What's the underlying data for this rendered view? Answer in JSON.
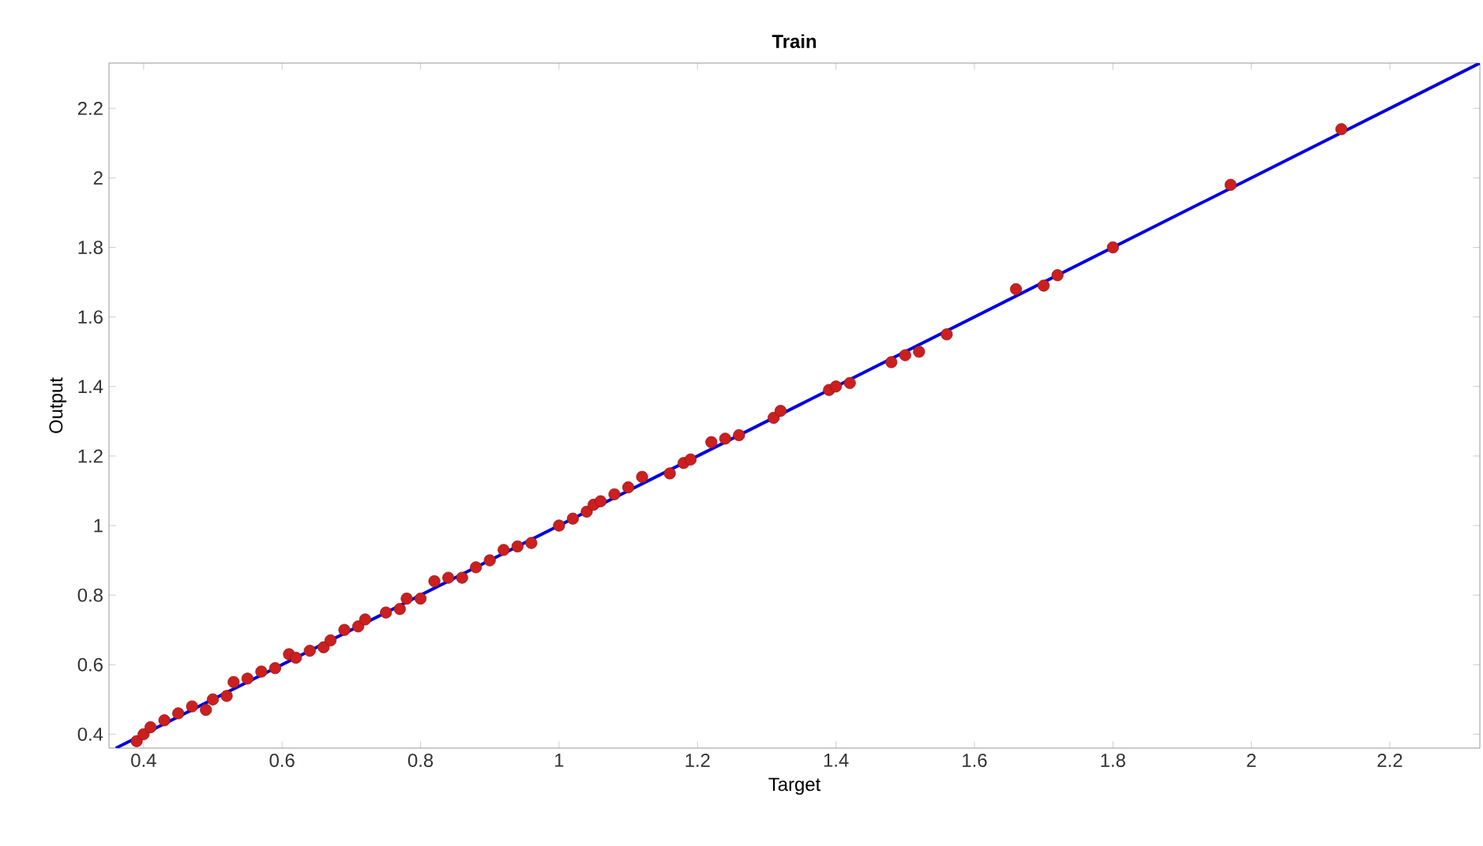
{
  "chart_data": {
    "type": "scatter",
    "title": "Train",
    "xlabel": "Target",
    "ylabel": "Output",
    "xlim": [
      0.35,
      2.33
    ],
    "ylim": [
      0.36,
      2.33
    ],
    "xticks": [
      0.4,
      0.6,
      0.8,
      1,
      1.2,
      1.4,
      1.6,
      1.8,
      2,
      2.2
    ],
    "yticks": [
      0.4,
      0.6,
      0.8,
      1,
      1.2,
      1.4,
      1.6,
      1.8,
      2,
      2.2
    ],
    "grid": false,
    "series": [
      {
        "color": "#cc1f1f",
        "marker": "circle",
        "x": [
          0.39,
          0.4,
          0.41,
          0.43,
          0.45,
          0.47,
          0.49,
          0.5,
          0.52,
          0.53,
          0.55,
          0.57,
          0.59,
          0.61,
          0.62,
          0.64,
          0.66,
          0.67,
          0.69,
          0.71,
          0.72,
          0.75,
          0.77,
          0.78,
          0.8,
          0.82,
          0.84,
          0.86,
          0.88,
          0.9,
          0.92,
          0.94,
          0.96,
          1.0,
          1.02,
          1.04,
          1.05,
          1.06,
          1.08,
          1.1,
          1.12,
          1.16,
          1.18,
          1.19,
          1.22,
          1.24,
          1.26,
          1.31,
          1.32,
          1.39,
          1.4,
          1.42,
          1.48,
          1.5,
          1.52,
          1.56,
          1.66,
          1.7,
          1.72,
          1.8,
          1.97,
          2.13
        ],
        "values": [
          0.38,
          0.4,
          0.42,
          0.44,
          0.46,
          0.48,
          0.47,
          0.5,
          0.51,
          0.55,
          0.56,
          0.58,
          0.59,
          0.63,
          0.62,
          0.64,
          0.65,
          0.67,
          0.7,
          0.71,
          0.73,
          0.75,
          0.76,
          0.79,
          0.79,
          0.84,
          0.85,
          0.85,
          0.88,
          0.9,
          0.93,
          0.94,
          0.95,
          1.0,
          1.02,
          1.04,
          1.06,
          1.07,
          1.09,
          1.11,
          1.14,
          1.15,
          1.18,
          1.19,
          1.24,
          1.25,
          1.26,
          1.31,
          1.33,
          1.39,
          1.4,
          1.41,
          1.47,
          1.49,
          1.5,
          1.55,
          1.68,
          1.69,
          1.72,
          1.8,
          1.98,
          2.14
        ]
      },
      {
        "type": "line",
        "color": "#0000dd",
        "marker": "none",
        "line_style": "solid",
        "x": [
          0.36,
          2.33
        ],
        "values": [
          0.36,
          2.33
        ]
      }
    ]
  }
}
